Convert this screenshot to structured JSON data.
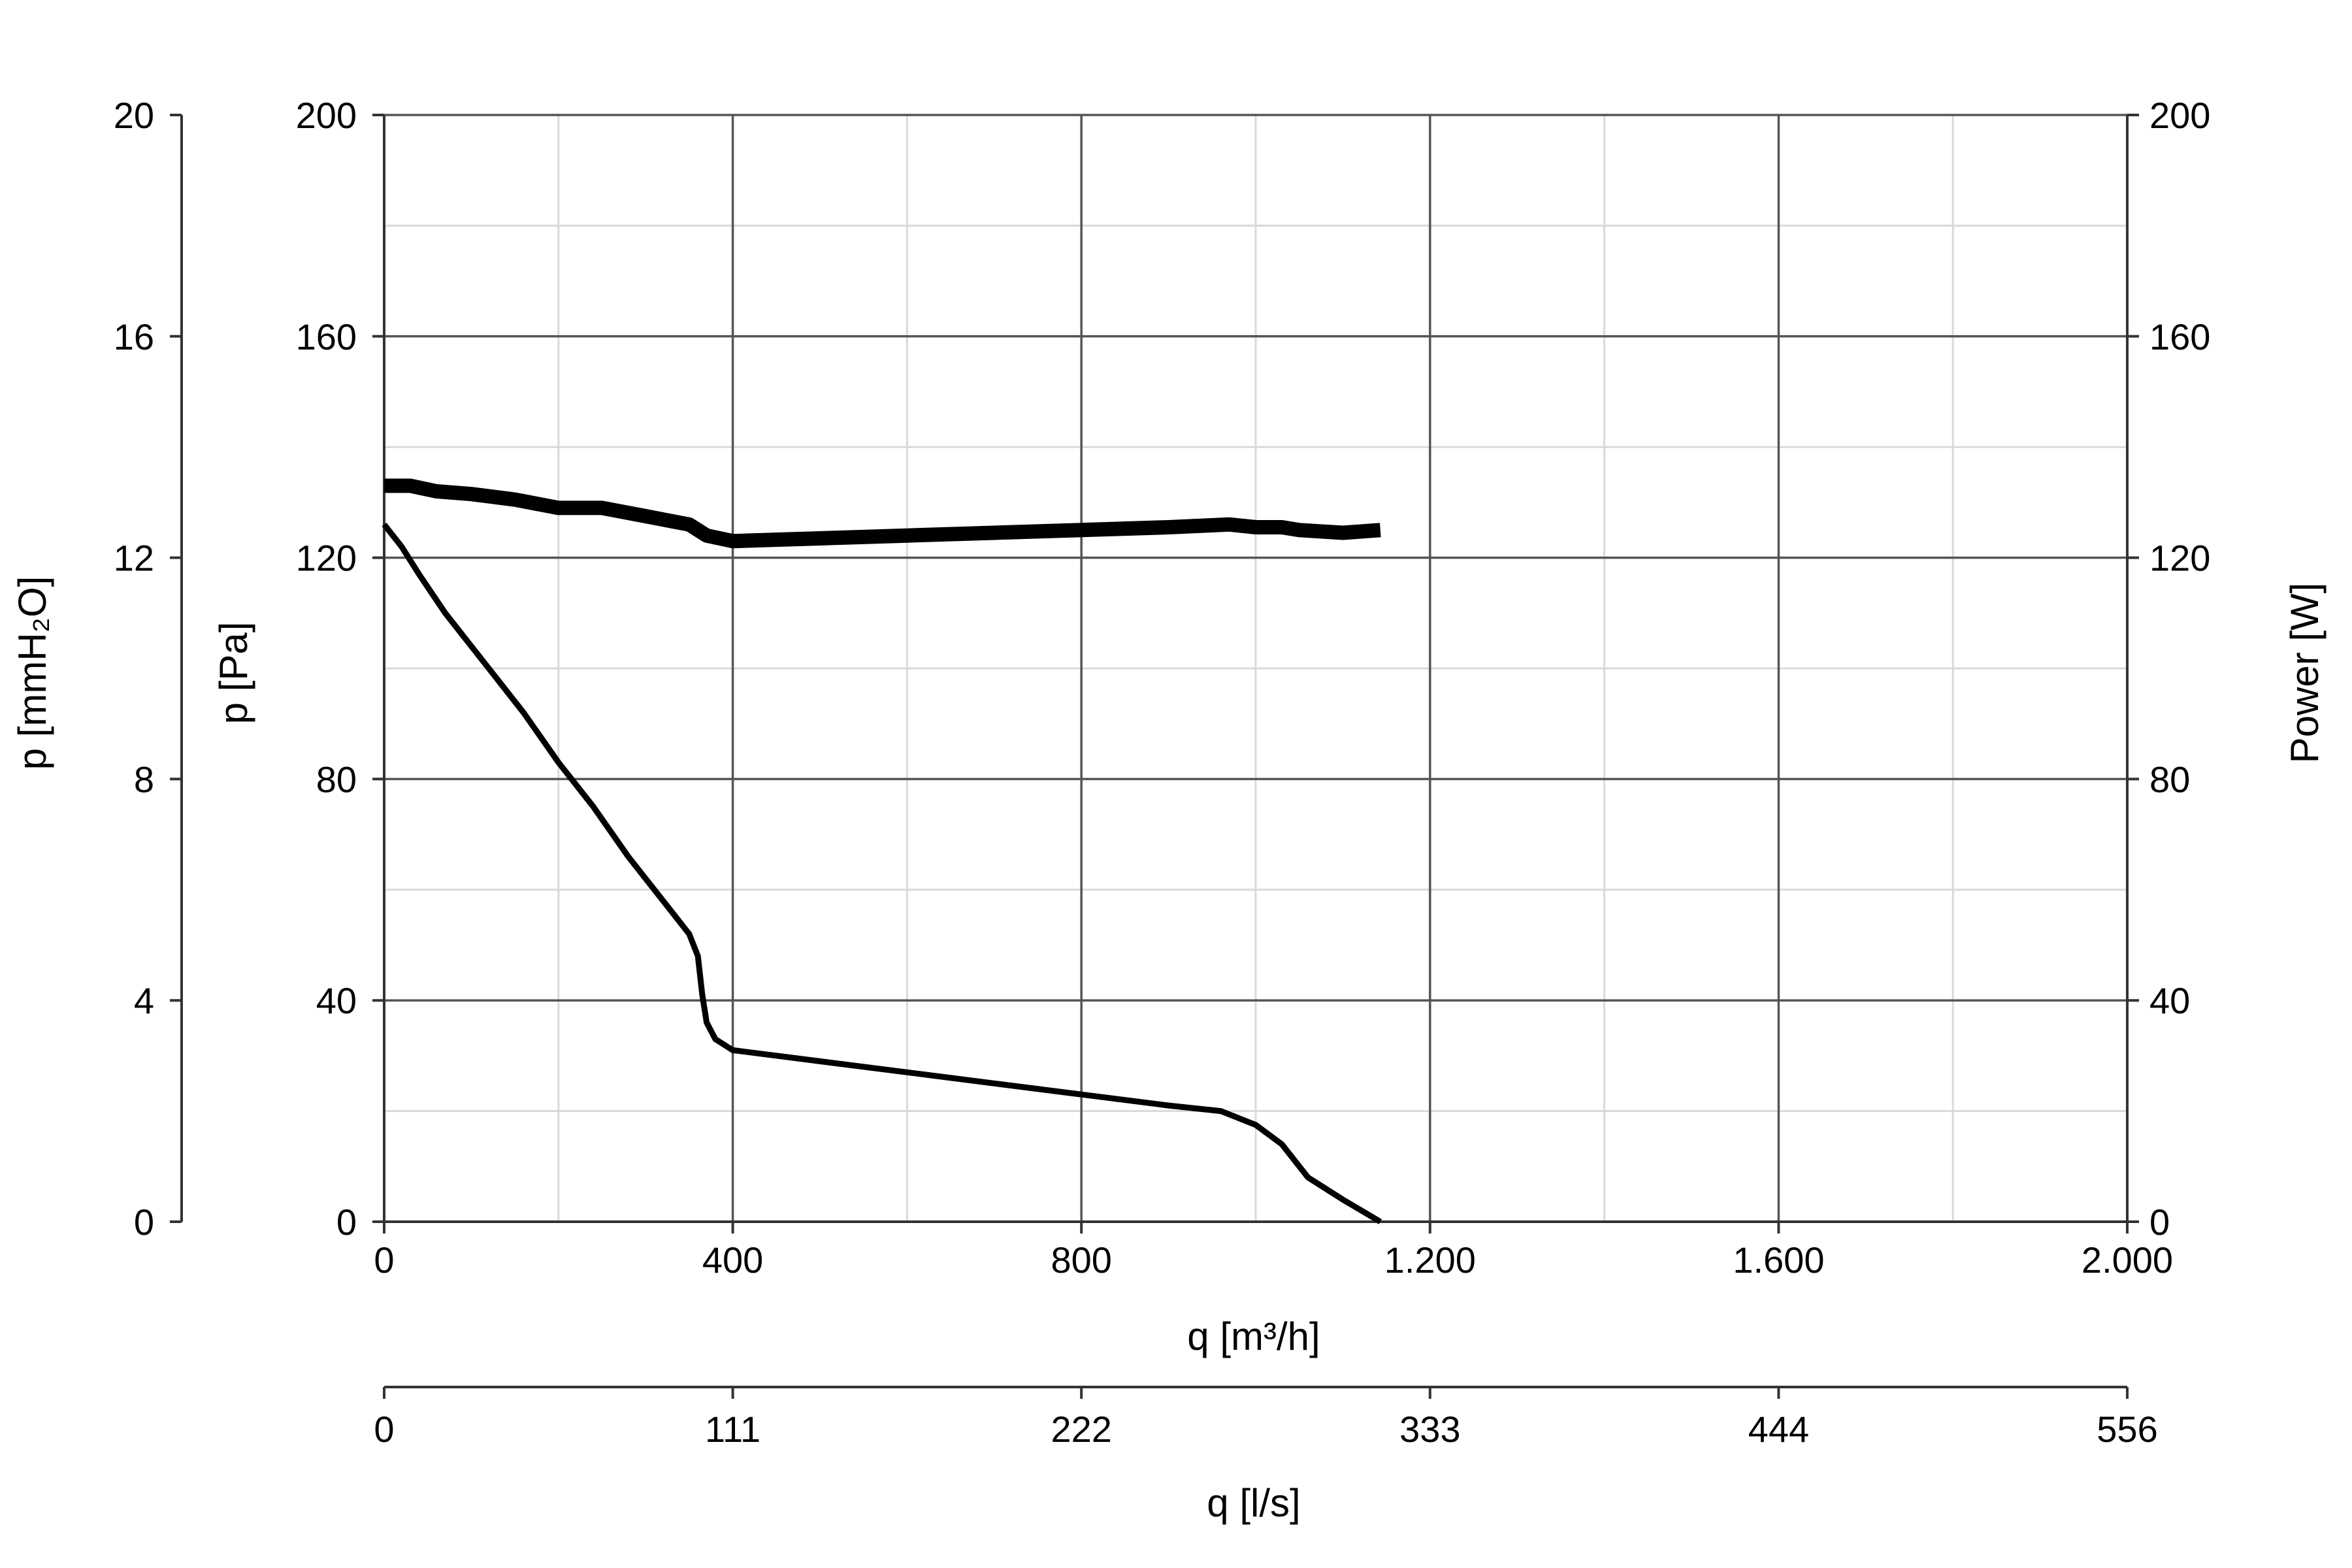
{
  "chart_data": {
    "type": "line",
    "xlabel": "q [m³/h]",
    "x2label": "q [l/s]",
    "ylabel": "p [Pa]",
    "y_mmh2o_label": "p [mmH₂O]",
    "y2label": "Power [W]",
    "xlim": [
      0,
      2000
    ],
    "ylim": [
      0,
      200
    ],
    "y_mmh2o_lim": [
      0,
      20
    ],
    "y2lim": [
      0,
      200
    ],
    "grid": true,
    "x_ticks": [
      {
        "value": 0,
        "label": "0"
      },
      {
        "value": 400,
        "label": "400"
      },
      {
        "value": 800,
        "label": "800"
      },
      {
        "value": 1200,
        "label": "1.200"
      },
      {
        "value": 1600,
        "label": "1.600"
      },
      {
        "value": 2000,
        "label": "2.000"
      }
    ],
    "x_minor_ticks": [
      200,
      600,
      1000,
      1400,
      1800
    ],
    "x2_ticks": [
      {
        "value": 0,
        "label": "0"
      },
      {
        "value": 400,
        "label": "111"
      },
      {
        "value": 800,
        "label": "222"
      },
      {
        "value": 1200,
        "label": "333"
      },
      {
        "value": 1600,
        "label": "444"
      },
      {
        "value": 2000,
        "label": "556"
      }
    ],
    "y_ticks": [
      {
        "value": 0,
        "label": "0"
      },
      {
        "value": 40,
        "label": "40"
      },
      {
        "value": 80,
        "label": "80"
      },
      {
        "value": 120,
        "label": "120"
      },
      {
        "value": 160,
        "label": "160"
      },
      {
        "value": 200,
        "label": "200"
      }
    ],
    "y_minor_ticks": [
      20,
      60,
      100,
      140,
      180
    ],
    "y_mmh2o_ticks": [
      {
        "value": 0,
        "label": "0"
      },
      {
        "value": 40,
        "label": "4"
      },
      {
        "value": 80,
        "label": "8"
      },
      {
        "value": 120,
        "label": "12"
      },
      {
        "value": 160,
        "label": "16"
      },
      {
        "value": 200,
        "label": "20"
      }
    ],
    "y2_ticks": [
      {
        "value": 0,
        "label": "0"
      },
      {
        "value": 40,
        "label": "40"
      },
      {
        "value": 80,
        "label": "80"
      },
      {
        "value": 120,
        "label": "120"
      },
      {
        "value": 160,
        "label": "160"
      },
      {
        "value": 200,
        "label": "200"
      }
    ],
    "series": [
      {
        "axis": "y2",
        "color": "#000000",
        "weight": "thick",
        "points": [
          [
            0,
            133
          ],
          [
            30,
            133
          ],
          [
            60,
            132
          ],
          [
            100,
            131.5
          ],
          [
            150,
            130.5
          ],
          [
            200,
            129
          ],
          [
            250,
            129
          ],
          [
            300,
            127.5
          ],
          [
            350,
            126
          ],
          [
            370,
            124
          ],
          [
            400,
            123
          ],
          [
            500,
            123.5
          ],
          [
            600,
            124
          ],
          [
            700,
            124.5
          ],
          [
            800,
            125
          ],
          [
            900,
            125.5
          ],
          [
            970,
            126
          ],
          [
            1000,
            125.5
          ],
          [
            1030,
            125.5
          ],
          [
            1050,
            125
          ],
          [
            1100,
            124.5
          ],
          [
            1143,
            125
          ]
        ]
      },
      {
        "axis": "y",
        "color": "#000000",
        "weight": "thin",
        "points": [
          [
            0,
            126
          ],
          [
            20,
            122
          ],
          [
            40,
            117
          ],
          [
            70,
            110
          ],
          [
            100,
            104
          ],
          [
            130,
            98
          ],
          [
            160,
            92
          ],
          [
            200,
            83
          ],
          [
            240,
            75
          ],
          [
            280,
            66
          ],
          [
            320,
            58
          ],
          [
            350,
            52
          ],
          [
            360,
            48
          ],
          [
            365,
            41
          ],
          [
            370,
            36
          ],
          [
            380,
            33
          ],
          [
            400,
            31
          ],
          [
            500,
            29
          ],
          [
            600,
            27
          ],
          [
            700,
            25
          ],
          [
            800,
            23
          ],
          [
            900,
            21
          ],
          [
            960,
            20
          ],
          [
            1000,
            17.5
          ],
          [
            1030,
            14
          ],
          [
            1060,
            8
          ],
          [
            1100,
            4
          ],
          [
            1143,
            0
          ]
        ]
      }
    ]
  }
}
